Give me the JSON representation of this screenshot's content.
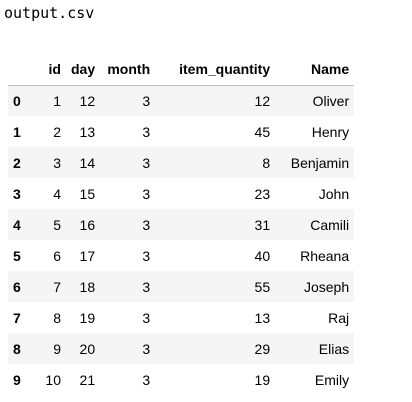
{
  "file": {
    "name": "output.csv"
  },
  "table": {
    "columns": [
      "id",
      "day",
      "month",
      "item_quantity",
      "Name"
    ],
    "rows": [
      {
        "index": "0",
        "cells": [
          "1",
          "12",
          "3",
          "12",
          "Oliver"
        ]
      },
      {
        "index": "1",
        "cells": [
          "2",
          "13",
          "3",
          "45",
          "Henry"
        ]
      },
      {
        "index": "2",
        "cells": [
          "3",
          "14",
          "3",
          "8",
          "Benjamin"
        ]
      },
      {
        "index": "3",
        "cells": [
          "4",
          "15",
          "3",
          "23",
          "John"
        ]
      },
      {
        "index": "4",
        "cells": [
          "5",
          "16",
          "3",
          "31",
          "Camili"
        ]
      },
      {
        "index": "5",
        "cells": [
          "6",
          "17",
          "3",
          "40",
          "Rheana"
        ]
      },
      {
        "index": "6",
        "cells": [
          "7",
          "18",
          "3",
          "55",
          "Joseph"
        ]
      },
      {
        "index": "7",
        "cells": [
          "8",
          "19",
          "3",
          "13",
          "Raj"
        ]
      },
      {
        "index": "8",
        "cells": [
          "9",
          "20",
          "3",
          "29",
          "Elias"
        ]
      },
      {
        "index": "9",
        "cells": [
          "10",
          "21",
          "3",
          "19",
          "Emily"
        ]
      }
    ]
  },
  "colors": {
    "stripe": "#f5f5f5",
    "header_border": "#bdbdbd",
    "text": "#000000"
  }
}
